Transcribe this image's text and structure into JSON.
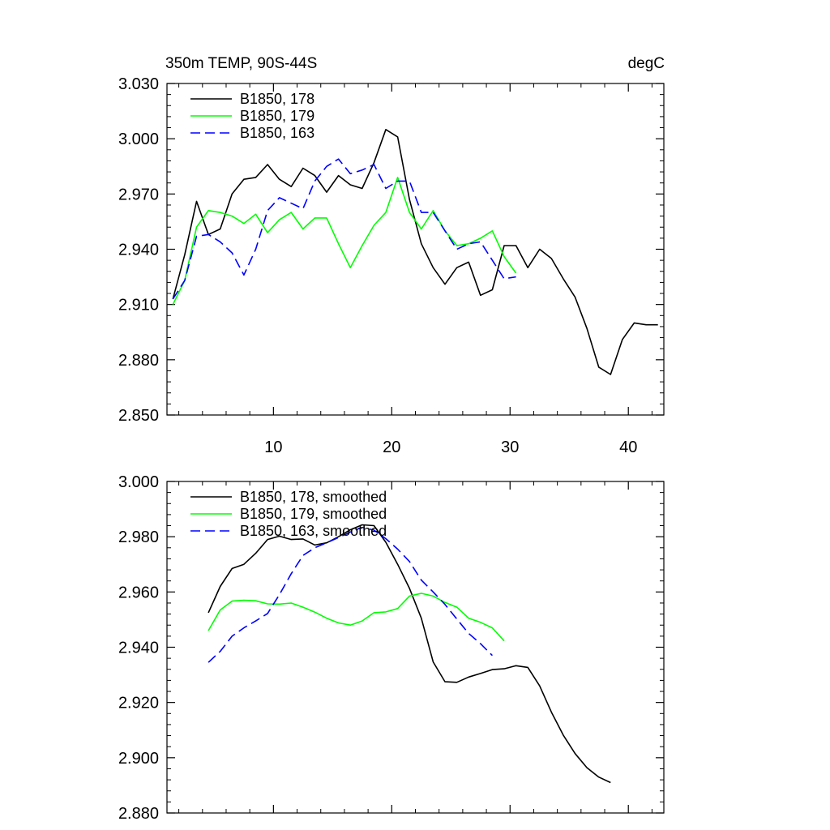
{
  "chart_data": [
    {
      "type": "line",
      "title": "350m TEMP, 90S-44S",
      "units": "degC",
      "xlim": [
        1,
        43
      ],
      "ylim": [
        2.85,
        3.03
      ],
      "yticks": [
        2.85,
        2.88,
        2.91,
        2.94,
        2.97,
        3.0,
        3.03
      ],
      "ytick_labels": [
        "2.850",
        "2.880",
        "2.910",
        "2.940",
        "2.970",
        "3.000",
        "3.030"
      ],
      "xticks": [
        10,
        20,
        30,
        40
      ],
      "xtick_labels": [
        "10",
        "20",
        "30",
        "40"
      ],
      "legend_position": "top-left",
      "series": [
        {
          "name": "B1850, 178",
          "color": "#000000",
          "dash": "solid",
          "x_start": 1.5,
          "values": [
            2.913,
            2.937,
            2.966,
            2.948,
            2.951,
            2.97,
            2.978,
            2.979,
            2.986,
            2.978,
            2.974,
            2.984,
            2.98,
            2.971,
            2.98,
            2.975,
            2.973,
            2.987,
            3.005,
            3.001,
            2.967,
            2.943,
            2.93,
            2.921,
            2.93,
            2.933,
            2.915,
            2.918,
            2.942,
            2.942,
            2.93,
            2.94,
            2.935,
            2.924,
            2.914,
            2.897,
            2.876,
            2.872,
            2.891,
            2.9,
            2.899,
            2.899
          ]
        },
        {
          "name": "B1850, 179",
          "color": "#00ff00",
          "dash": "solid",
          "x_start": 1.5,
          "values": [
            2.91,
            2.923,
            2.952,
            2.961,
            2.96,
            2.958,
            2.954,
            2.959,
            2.949,
            2.956,
            2.96,
            2.951,
            2.957,
            2.957,
            2.943,
            2.93,
            2.942,
            2.953,
            2.96,
            2.979,
            2.96,
            2.951,
            2.961,
            2.95,
            2.942,
            2.943,
            2.946,
            2.95,
            2.936,
            2.927
          ]
        },
        {
          "name": "B1850, 163",
          "color": "#0000ff",
          "dash": "dashed",
          "x_start": 1.5,
          "values": [
            2.913,
            2.923,
            2.947,
            2.948,
            2.944,
            2.938,
            2.926,
            2.94,
            2.961,
            2.968,
            2.965,
            2.962,
            2.977,
            2.985,
            2.989,
            2.981,
            2.983,
            2.986,
            2.973,
            2.977,
            2.977,
            2.96,
            2.96,
            2.95,
            2.94,
            2.943,
            2.944,
            2.934,
            2.924,
            2.925
          ]
        }
      ]
    },
    {
      "type": "line",
      "title": "",
      "xlim": [
        1,
        43
      ],
      "ylim": [
        2.88,
        3.0
      ],
      "yticks": [
        2.88,
        2.9,
        2.92,
        2.94,
        2.96,
        2.98,
        3.0
      ],
      "ytick_labels": [
        "2.880",
        "2.900",
        "2.920",
        "2.940",
        "2.960",
        "2.980",
        "3.000"
      ],
      "xticks": [
        10,
        20,
        30,
        40
      ],
      "xtick_labels": [],
      "legend_position": "top-left",
      "series": [
        {
          "name": "B1850, 178, smoothed",
          "color": "#000000",
          "dash": "solid",
          "x_start": 4.5,
          "values": [
            2.9525,
            2.962,
            2.9685,
            2.97,
            2.974,
            2.979,
            2.9802,
            2.979,
            2.9792,
            2.977,
            2.9778,
            2.98,
            2.9825,
            2.9843,
            2.984,
            2.978,
            2.97,
            2.9613,
            2.9505,
            2.9347,
            2.9275,
            2.9273,
            2.9292,
            2.9305,
            2.9319,
            2.9322,
            2.9333,
            2.9327,
            2.926,
            2.9165,
            2.9082,
            2.9015,
            2.8964,
            2.893,
            2.891
          ]
        },
        {
          "name": "B1850, 179, smoothed",
          "color": "#00ff00",
          "dash": "solid",
          "x_start": 4.5,
          "values": [
            2.946,
            2.9535,
            2.9567,
            2.957,
            2.9568,
            2.9557,
            2.9556,
            2.956,
            2.9545,
            2.9527,
            2.9505,
            2.9488,
            2.948,
            2.9495,
            2.9525,
            2.9528,
            2.954,
            2.9585,
            2.9595,
            2.9585,
            2.9562,
            2.9545,
            2.9505,
            2.949,
            2.947,
            2.9423
          ]
        },
        {
          "name": "B1850, 163, smoothed",
          "color": "#0000ff",
          "dash": "dashed",
          "x_start": 4.5,
          "values": [
            2.9345,
            2.9385,
            2.944,
            2.947,
            2.9495,
            2.9522,
            2.959,
            2.9666,
            2.9732,
            2.976,
            2.9778,
            2.9797,
            2.9817,
            2.9834,
            2.9824,
            2.9793,
            2.9755,
            2.971,
            2.9643,
            2.96,
            2.9555,
            2.9502,
            2.945,
            2.9413,
            2.937
          ]
        }
      ]
    }
  ]
}
